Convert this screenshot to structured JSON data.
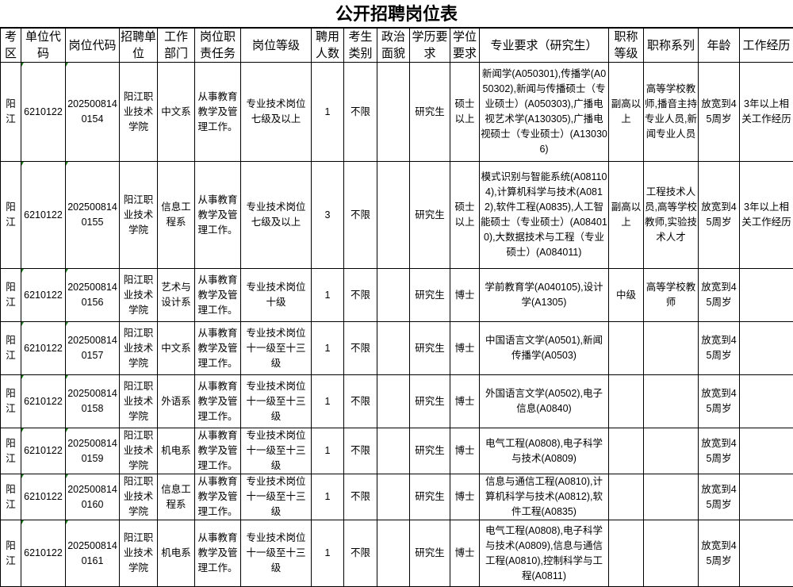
{
  "title": "公开招聘岗位表",
  "headers": [
    "考区",
    "单位代码",
    "岗位代码",
    "招聘单位",
    "工作部门",
    "岗位职责任务",
    "岗位等级",
    "聘用人数",
    "考生类别",
    "政治面貌",
    "学历要求",
    "学位要求",
    "专业要求（研究生）",
    "职称等级",
    "职称系列",
    "年龄",
    "工作经历"
  ],
  "rows": [
    [
      "阳江",
      "6210122",
      "2025008140154",
      "阳江职业技术学院",
      "中文系",
      "从事教育教学及管理工作。",
      "专业技术岗位七级及以上",
      "1",
      "不限",
      "",
      "研究生",
      "硕士以上",
      "新闻学(A050301),传播学(A050302),新闻与传播硕士（专业硕士）(A050303),广播电视艺术学(A130305),广播电视硕士（专业硕士）(A130306)",
      "副高以上",
      "高等学校教师,播音主持专业人员,新闻专业人员",
      "放宽到45周岁",
      "3年以上相关工作经历"
    ],
    [
      "阳江",
      "6210122",
      "2025008140155",
      "阳江职业技术学院",
      "信息工程系",
      "从事教育教学及管理工作。",
      "专业技术岗位七级及以上",
      "3",
      "不限",
      "",
      "研究生",
      "硕士以上",
      "模式识别与智能系统(A081104),计算机科学与技术(A0812),软件工程(A0835),人工智能硕士（专业硕士）(A084010),大数据技术与工程（专业硕士）(A084011)",
      "副高以上",
      "工程技术人员,高等学校教师,实验技术人才",
      "放宽到45周岁",
      "3年以上相关工作经历"
    ],
    [
      "阳江",
      "6210122",
      "2025008140156",
      "阳江职业技术学院",
      "艺术与设计系",
      "从事教育教学及管理工作。",
      "专业技术岗位十级",
      "1",
      "不限",
      "",
      "研究生",
      "博士",
      "学前教育学(A040105),设计学(A1305)",
      "中级",
      "高等学校教师",
      "放宽到45周岁",
      ""
    ],
    [
      "阳江",
      "6210122",
      "2025008140157",
      "阳江职业技术学院",
      "中文系",
      "从事教育教学及管理工作。",
      "专业技术岗位十一级至十三级",
      "1",
      "不限",
      "",
      "研究生",
      "博士",
      "中国语言文学(A0501),新闻传播学(A0503)",
      "",
      "",
      "放宽到45周岁",
      ""
    ],
    [
      "阳江",
      "6210122",
      "2025008140158",
      "阳江职业技术学院",
      "外语系",
      "从事教育教学及管理工作。",
      "专业技术岗位十一级至十三级",
      "1",
      "不限",
      "",
      "研究生",
      "博士",
      "外国语言文学(A0502),电子信息(A0840)",
      "",
      "",
      "放宽到45周岁",
      ""
    ],
    [
      "阳江",
      "6210122",
      "2025008140159",
      "阳江职业技术学院",
      "机电系",
      "从事教育教学及管理工作。",
      "专业技术岗位十一级至十三级",
      "1",
      "不限",
      "",
      "研究生",
      "博士",
      "电气工程(A0808),电子科学与技术(A0809)",
      "",
      "",
      "放宽到45周岁",
      ""
    ],
    [
      "阳江",
      "6210122",
      "2025008140160",
      "阳江职业技术学院",
      "信息工程系",
      "从事教育教学及管理工作。",
      "专业技术岗位十一级至十三级",
      "1",
      "不限",
      "",
      "研究生",
      "博士",
      "信息与通信工程(A0810),计算机科学与技术(A0812),软件工程(A0835)",
      "",
      "",
      "放宽到45周岁",
      ""
    ],
    [
      "阳江",
      "6210122",
      "2025008140161",
      "阳江职业技术学院",
      "机电系",
      "从事教育教学及管理工作。",
      "专业技术岗位十一级至十三级",
      "1",
      "不限",
      "",
      "研究生",
      "博士",
      "电气工程(A0808),电子科学与技术(A0809),信息与通信工程(A0810),控制科学与工程(A0811)",
      "",
      "",
      "放宽到45周岁",
      ""
    ]
  ]
}
